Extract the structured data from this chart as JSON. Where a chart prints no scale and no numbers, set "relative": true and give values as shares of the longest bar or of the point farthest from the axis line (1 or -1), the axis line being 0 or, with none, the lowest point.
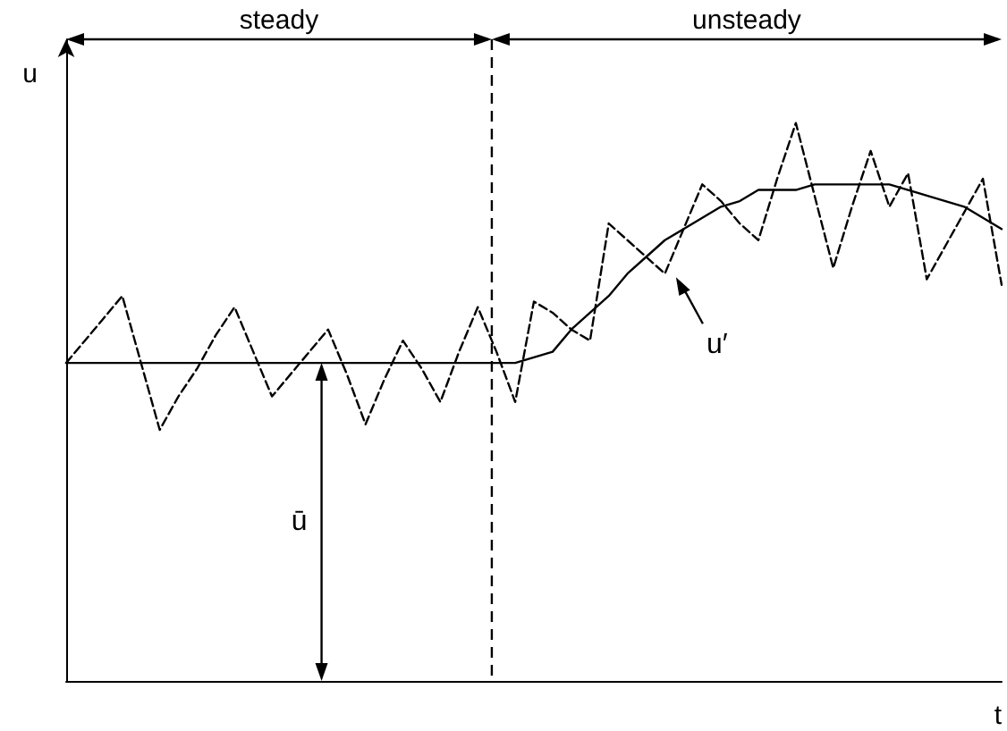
{
  "chart_data": {
    "type": "line",
    "relative": true,
    "xlabel": "t",
    "ylabel": "u",
    "tick_labels": false,
    "marker": "none",
    "categories": [
      null,
      null,
      null,
      null,
      null,
      null,
      null,
      null,
      null,
      null,
      null,
      null,
      null,
      null,
      null,
      null,
      null,
      null,
      null,
      null,
      null,
      null,
      null,
      null,
      null,
      null,
      null,
      null,
      null,
      null,
      null,
      null,
      null,
      null,
      null,
      null,
      null,
      null,
      null,
      null,
      null,
      null,
      null,
      null,
      null,
      null,
      null,
      null,
      null,
      null,
      null
    ],
    "series": [
      {
        "color": "#000000",
        "line_style": "solid",
        "values": [
          0.57,
          0.57,
          0.57,
          0.57,
          0.57,
          0.57,
          0.57,
          0.57,
          0.57,
          0.57,
          0.57,
          0.57,
          0.57,
          0.57,
          0.57,
          0.57,
          0.57,
          0.57,
          0.57,
          0.57,
          0.57,
          0.57,
          0.57,
          0.57,
          0.57,
          0.58,
          0.59,
          0.63,
          0.66,
          0.69,
          0.73,
          0.76,
          0.79,
          0.81,
          0.83,
          0.85,
          0.86,
          0.88,
          0.88,
          0.88,
          0.89,
          0.89,
          0.89,
          0.89,
          0.89,
          0.88,
          0.87,
          0.86,
          0.85,
          0.83,
          0.81
        ]
      },
      {
        "color": "#000000",
        "line_style": "dashed",
        "values": [
          0.57,
          0.61,
          0.65,
          0.69,
          0.57,
          0.45,
          0.51,
          0.56,
          0.62,
          0.67,
          0.59,
          0.51,
          0.55,
          0.59,
          0.63,
          0.55,
          0.46,
          0.54,
          0.61,
          0.56,
          0.5,
          0.59,
          0.67,
          0.59,
          0.5,
          0.68,
          0.66,
          0.63,
          0.61,
          0.82,
          0.79,
          0.76,
          0.73,
          0.81,
          0.89,
          0.86,
          0.82,
          0.79,
          0.9,
          1.0,
          0.87,
          0.74,
          0.85,
          0.95,
          0.85,
          0.91,
          0.72,
          0.78,
          0.84,
          0.9,
          0.71
        ]
      }
    ],
    "annotations": [
      "steady",
      "unsteady",
      "ū",
      "u′"
    ]
  }
}
